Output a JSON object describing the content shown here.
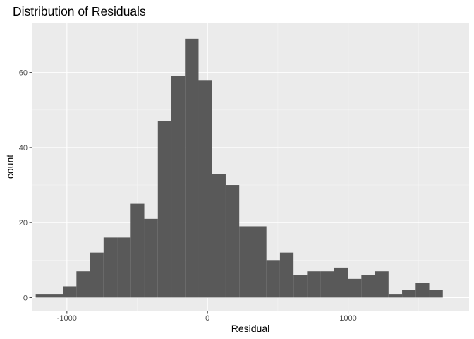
{
  "chart_data": {
    "type": "bar",
    "title": "Distribution of Residuals",
    "xlabel": "Residual",
    "ylabel": "count",
    "xlim": [
      -1250,
      1860
    ],
    "ylim": [
      -3.5,
      73.3
    ],
    "x_ticks": [
      -1000,
      0,
      1000
    ],
    "x_tick_labels": [
      "-1000",
      "0",
      "1000"
    ],
    "y_ticks": [
      0,
      20,
      40,
      60
    ],
    "y_tick_labels": [
      "0",
      "20",
      "40",
      "60"
    ],
    "x_minor_ticks": [
      -500,
      500,
      1500
    ],
    "y_minor_ticks": [
      10,
      30,
      50,
      70
    ],
    "grid": true,
    "legend": "none",
    "bin_width": 96.5,
    "bin_start": -1221.75,
    "values": [
      1,
      1,
      3,
      7,
      12,
      16,
      16,
      25,
      21,
      47,
      59,
      69,
      58,
      33,
      30,
      19,
      19,
      10,
      12,
      6,
      7,
      7,
      8,
      5,
      6,
      7,
      1,
      2,
      4,
      2
    ],
    "colors": {
      "bar": "#595959",
      "panel": "#ebebeb",
      "grid_major": "#ffffff",
      "grid_minor": "#f5f5f5",
      "tick": "#333333",
      "tick_label": "#4d4d4d"
    }
  }
}
